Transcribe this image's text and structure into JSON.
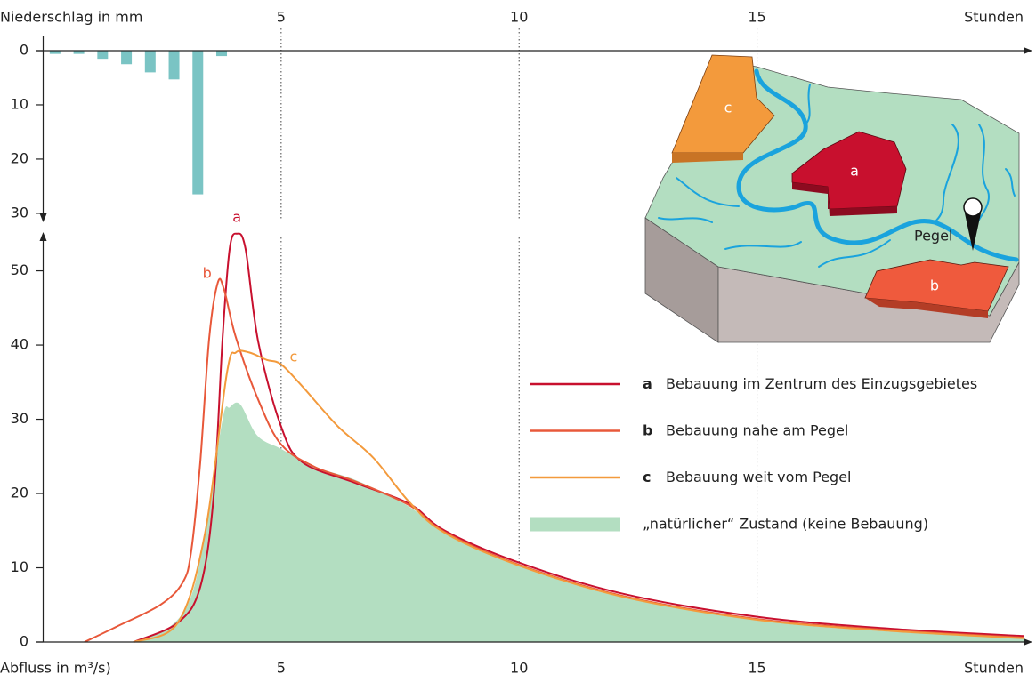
{
  "chart_data": [
    {
      "type": "bar",
      "y_label": "Niederschlag in mm",
      "x_label": "Stunden",
      "x": [
        0.25,
        0.75,
        1.25,
        1.75,
        2.25,
        2.75,
        3.25,
        3.75
      ],
      "values": [
        0.6,
        0.6,
        1.5,
        2.5,
        4,
        5.3,
        26.5,
        1
      ],
      "color": "#7ac4c4",
      "xlim": [
        0,
        20.6
      ],
      "xticks": [
        5,
        10,
        15
      ],
      "ylim": [
        0,
        31
      ],
      "yticks": [
        0,
        10,
        20,
        30
      ],
      "y_inverted": true,
      "grid": true
    },
    {
      "type": "line",
      "y_label": "Abfluss in m³/s)",
      "x_label": "Stunden",
      "xlim": [
        0,
        20.6
      ],
      "xticks": [
        5,
        10,
        15
      ],
      "ylim": [
        0,
        54.5
      ],
      "yticks": [
        0,
        10,
        20,
        30,
        40,
        50
      ],
      "grid": true,
      "series": [
        {
          "label": "a",
          "name": "Bebauung im Zentrum des Einzugsgebietes",
          "color": "#c8102e",
          "x": [
            1.9,
            2.83,
            3.3,
            3.58,
            3.77,
            3.92,
            4.07,
            4.25,
            4.52,
            5,
            5.45,
            6.57,
            7.7,
            8.44,
            10,
            12.18,
            15,
            17.8,
            20.6
          ],
          "values": [
            0,
            2.6,
            7.4,
            19.4,
            41,
            53,
            55,
            53,
            40.4,
            29,
            24.2,
            21.4,
            18.6,
            15,
            10.7,
            6.5,
            3.4,
            1.8,
            0.8
          ]
        },
        {
          "label": "b",
          "name": "Bebauung nahe am Pegel",
          "color": "#e8583a",
          "x": [
            0.87,
            1.52,
            2.46,
            2.93,
            3.11,
            3.3,
            3.49,
            3.67,
            3.8,
            4.05,
            4.52,
            5,
            5.7,
            6.57,
            7.7,
            8.44,
            10,
            12.18,
            15,
            17.8,
            20.6
          ],
          "values": [
            0,
            2,
            5,
            8,
            12.2,
            24.2,
            41,
            48.4,
            47.5,
            41,
            32.6,
            26.6,
            23.6,
            21.6,
            18.4,
            14.8,
            10.4,
            6.2,
            3.1,
            1.6,
            0.6
          ]
        },
        {
          "label": "c",
          "name": "Bebauung weit vom Pegel",
          "color": "#f39a3c",
          "x": [
            1.9,
            2.83,
            3.4,
            3.86,
            4.05,
            4.33,
            4.7,
            5,
            5.45,
            6.2,
            6.94,
            7.7,
            8.44,
            10,
            12.18,
            15,
            17.8,
            20.6
          ],
          "values": [
            0,
            2.6,
            14.6,
            36.2,
            39,
            39,
            38,
            37.4,
            34.4,
            29,
            24.8,
            18.8,
            14.7,
            10.3,
            6.1,
            3,
            1.5,
            0.5
          ]
        },
        {
          "name": "„natürlicher“ Zustand (keine Bebauung)",
          "color": "#b3dec1",
          "fill": true,
          "x": [
            1.9,
            2.65,
            3.1,
            3.4,
            3.77,
            3.92,
            4.14,
            4.5,
            5,
            5.7,
            6.57,
            7.7,
            8.44,
            10,
            12.18,
            15,
            17.8,
            20.6
          ],
          "values": [
            0,
            2,
            6,
            14.6,
            30,
            31.6,
            32,
            27.8,
            26,
            23.6,
            21.8,
            18.2,
            14.6,
            10.2,
            6,
            2.9,
            1.4,
            0.5
          ]
        }
      ]
    }
  ],
  "illustration": {
    "areas": [
      "c",
      "a",
      "b"
    ],
    "gauge": "Pegel"
  }
}
